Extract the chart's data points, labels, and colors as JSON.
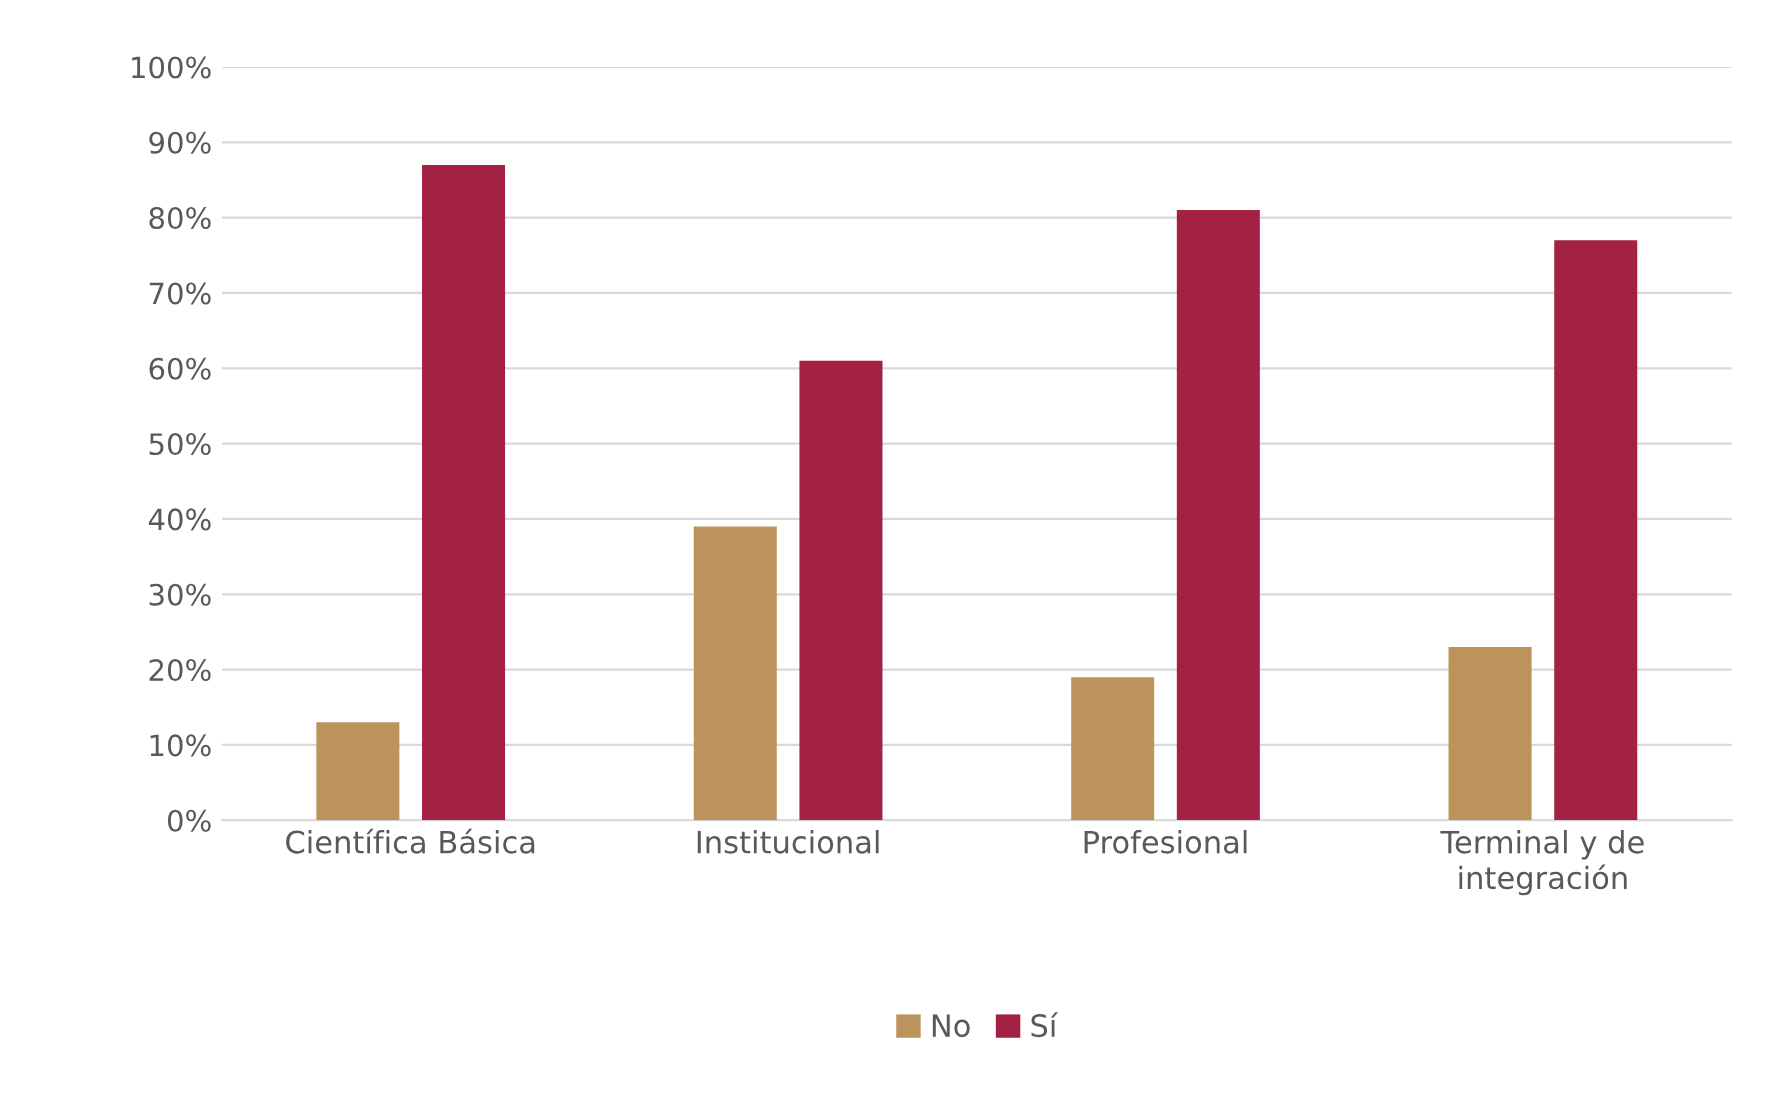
{
  "chart_data": {
    "type": "bar",
    "categories": [
      "Científica Básica",
      "Institucional",
      "Profesional",
      "Terminal y de\nintegración"
    ],
    "series": [
      {
        "name": "No",
        "color": "#bc935b",
        "values": [
          13,
          39,
          19,
          23
        ]
      },
      {
        "name": "Sí",
        "color": "#a32143",
        "values": [
          87,
          61,
          81,
          77
        ]
      }
    ],
    "ylim": [
      0,
      100
    ],
    "yticks": [
      {
        "value": 0,
        "label": "0%"
      },
      {
        "value": 10,
        "label": "10%"
      },
      {
        "value": 20,
        "label": "20%"
      },
      {
        "value": 30,
        "label": "30%"
      },
      {
        "value": 40,
        "label": "40%"
      },
      {
        "value": 50,
        "label": "50%"
      },
      {
        "value": 60,
        "label": "60%"
      },
      {
        "value": 70,
        "label": "70%"
      },
      {
        "value": 80,
        "label": "80%"
      },
      {
        "value": 90,
        "label": "90%"
      },
      {
        "value": 100,
        "label": "100%"
      }
    ],
    "grid": "y",
    "legend": "bottom"
  }
}
